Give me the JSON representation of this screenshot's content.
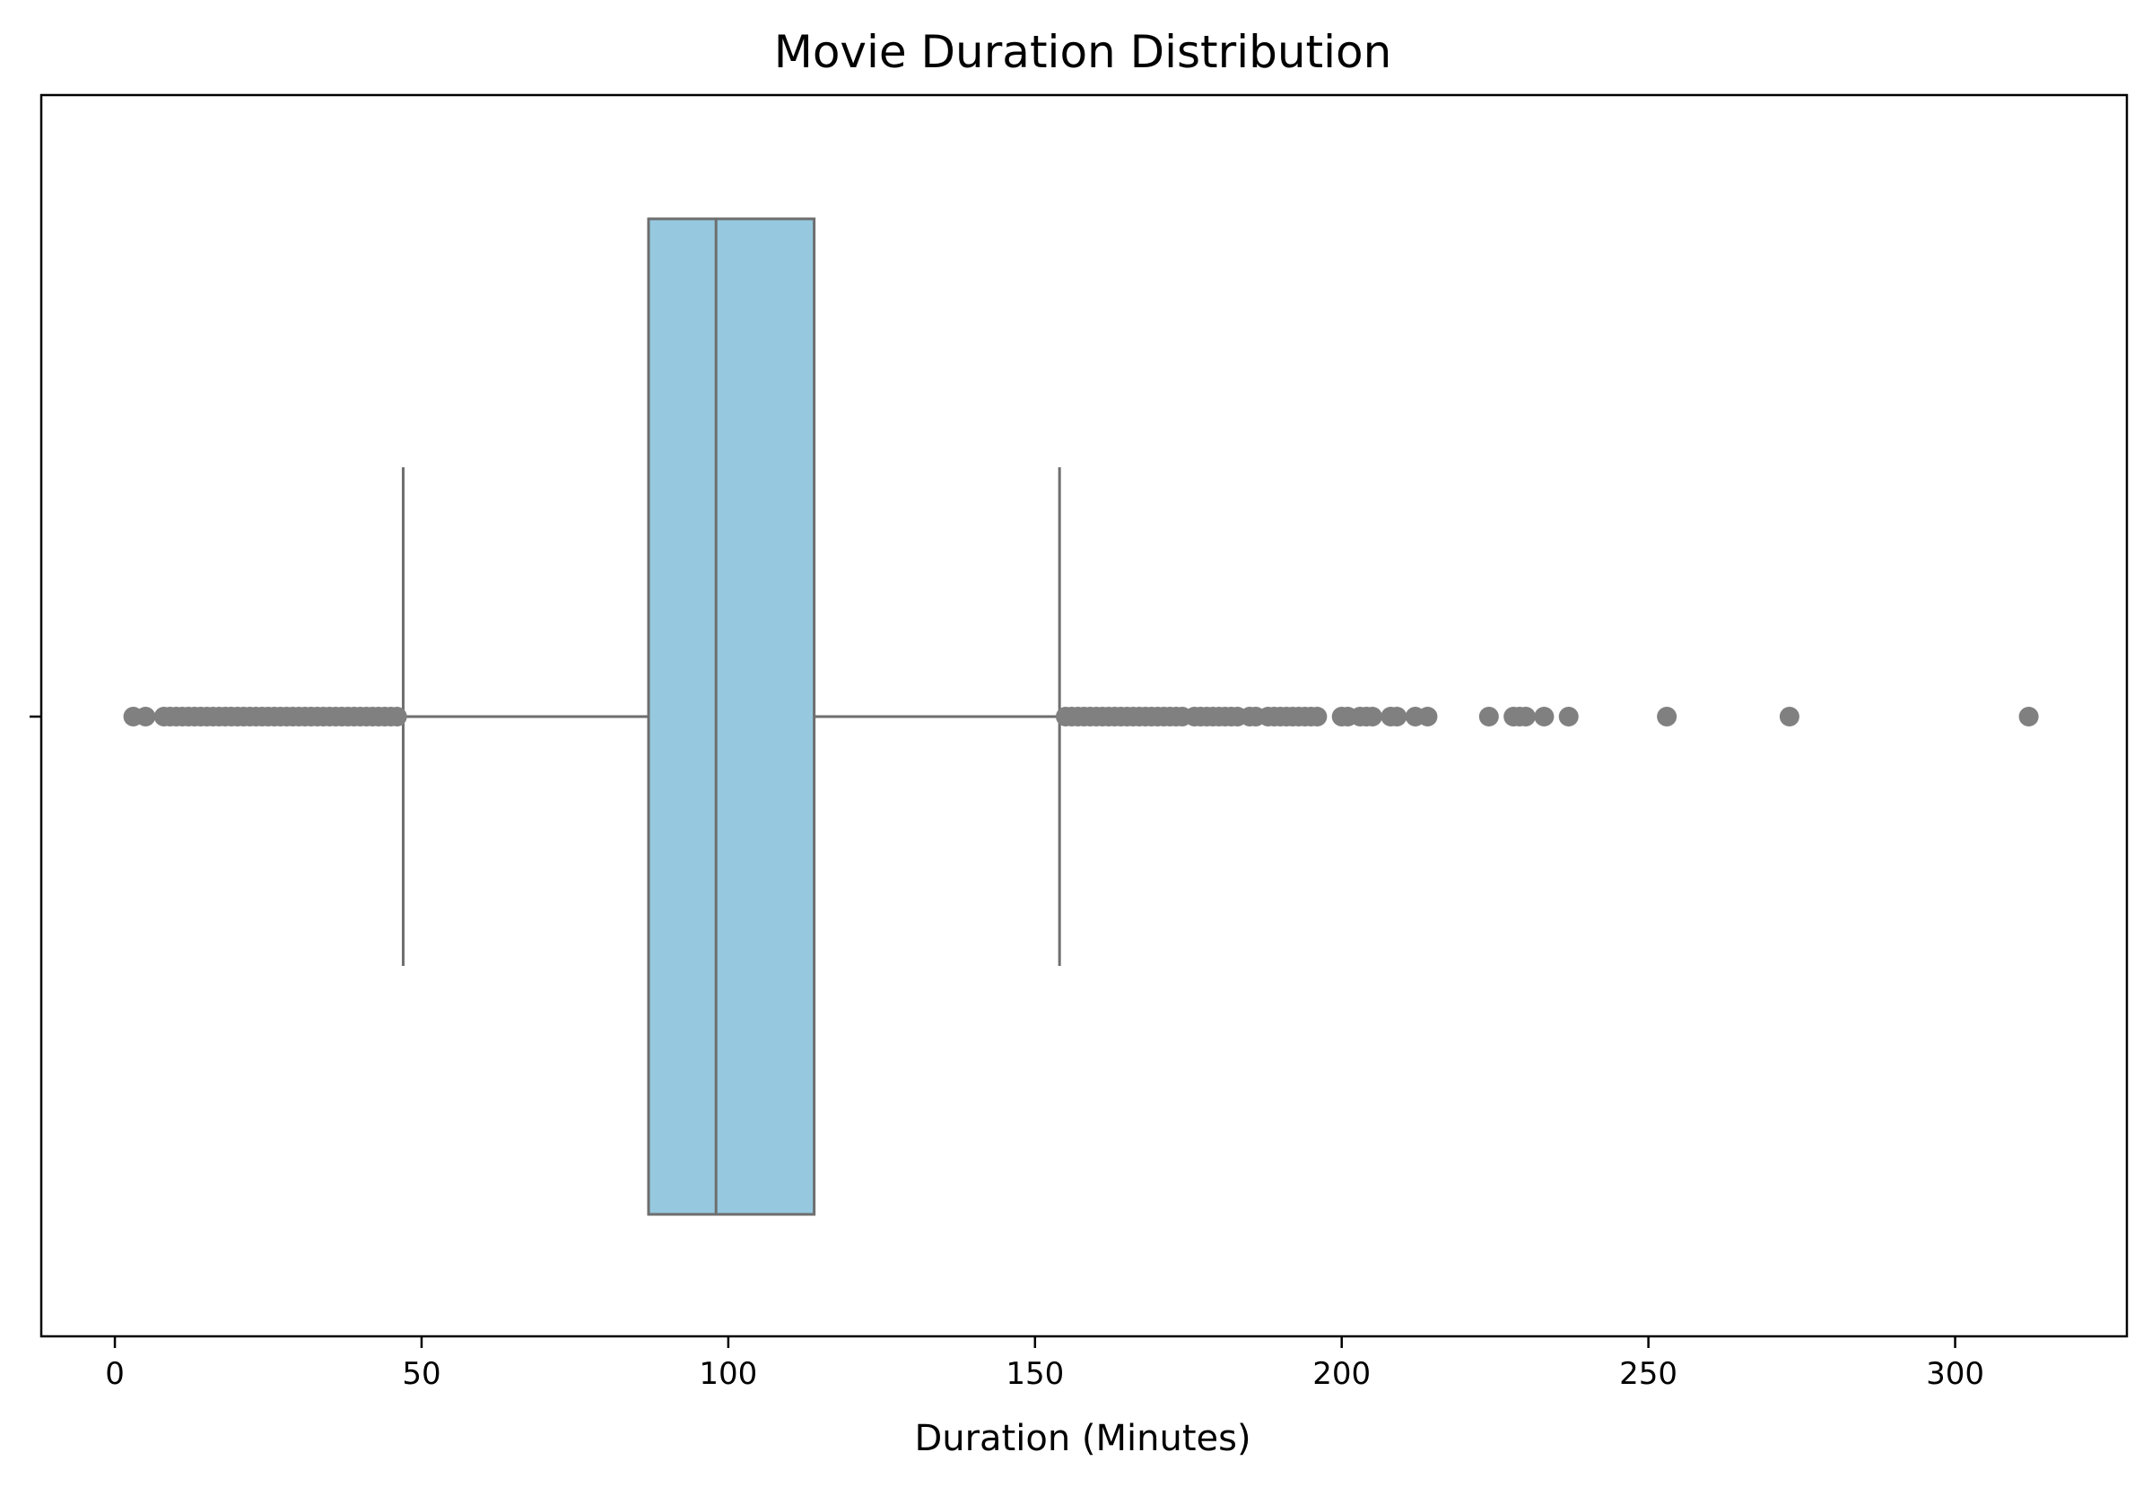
{
  "chart_data": {
    "type": "box",
    "orientation": "horizontal",
    "title": "Movie Duration Distribution",
    "xlabel": "Duration (Minutes)",
    "ylabel": "",
    "xlim": [
      -12,
      328
    ],
    "xticks": [
      0,
      50,
      100,
      150,
      200,
      250,
      300
    ],
    "xtick_labels": [
      "0",
      "50",
      "100",
      "150",
      "200",
      "250",
      "300"
    ],
    "grid": false,
    "legend": "none",
    "box": {
      "whisker_low": 47,
      "q1": 87,
      "median": 98,
      "q3": 114,
      "whisker_high": 154
    },
    "outliers": [
      3,
      5,
      8,
      9,
      10,
      11,
      12,
      13,
      14,
      15,
      16,
      17,
      18,
      19,
      20,
      21,
      22,
      23,
      24,
      25,
      26,
      27,
      28,
      29,
      30,
      31,
      32,
      33,
      34,
      35,
      36,
      37,
      38,
      39,
      40,
      41,
      42,
      43,
      44,
      45,
      46,
      155,
      156,
      157,
      158,
      159,
      160,
      161,
      162,
      163,
      164,
      165,
      166,
      167,
      168,
      169,
      170,
      171,
      172,
      173,
      174,
      176,
      177,
      178,
      179,
      180,
      181,
      182,
      183,
      185,
      186,
      188,
      189,
      190,
      191,
      192,
      193,
      194,
      195,
      196,
      200,
      201,
      203,
      204,
      205,
      208,
      209,
      212,
      214,
      224,
      228,
      229,
      230,
      233,
      237,
      253,
      273,
      312
    ],
    "colors": {
      "box_fill": "#96c9e0",
      "box_edge": "#6e6e6e",
      "outlier": "#808080",
      "frame": "#000000"
    }
  }
}
